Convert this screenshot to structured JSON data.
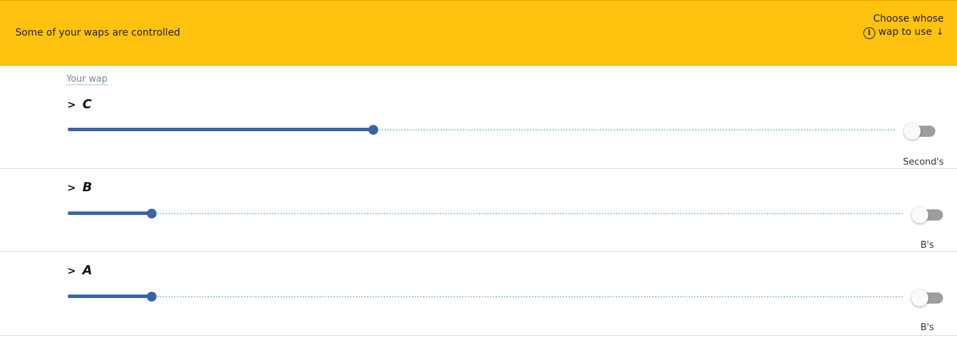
{
  "banner": {
    "message": "Some of your waps are controlled",
    "choose_label": "Choose whose wap to use",
    "arrow": "↓",
    "info_icon": "i"
  },
  "section_title": "Your wap",
  "rows": [
    {
      "label": "C",
      "value_fraction": 0.37,
      "toggle_on": false,
      "owner": "Second's"
    },
    {
      "label": "B",
      "value_fraction": 0.1,
      "toggle_on": false,
      "owner": "B's"
    },
    {
      "label": "A",
      "value_fraction": 0.1,
      "toggle_on": false,
      "owner": "B's"
    }
  ],
  "colors": {
    "banner": "#ffc20e",
    "slider_fill": "#3a65a5",
    "slider_track_dots": "#9fd3cf",
    "toggle_off": "#9e9e9e"
  }
}
